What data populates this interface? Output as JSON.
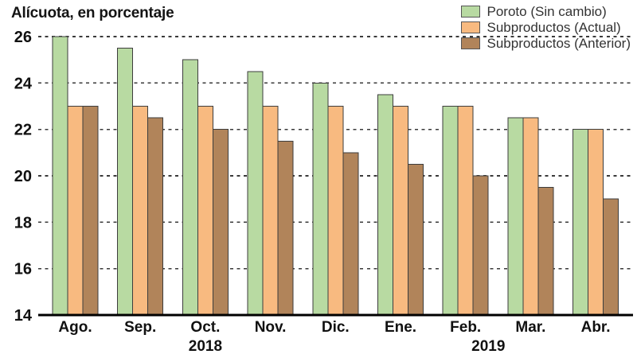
{
  "title": "Alícuota, en porcentaje",
  "chart_data": {
    "type": "bar",
    "title": "Alícuota, en porcentaje",
    "categories": [
      "Ago.",
      "Sep.",
      "Oct.",
      "Nov.",
      "Dic.",
      "Ene.",
      "Feb.",
      "Mar.",
      "Abr."
    ],
    "series": [
      {
        "name": "Poroto (Sin cambio)",
        "color": "#b8daa2",
        "values": [
          26,
          25.5,
          25,
          24.5,
          24,
          23.5,
          23,
          22.5,
          22
        ]
      },
      {
        "name": "Subproductos (Actual)",
        "color": "#f8ba80",
        "values": [
          23,
          23,
          23,
          23,
          23,
          23,
          23,
          22.5,
          22
        ]
      },
      {
        "name": "Subproductos (Anterior)",
        "color": "#b1845a",
        "values": [
          23,
          22.5,
          22,
          21.5,
          21,
          20.5,
          20,
          19.5,
          19
        ]
      }
    ],
    "yticks": [
      14,
      16,
      18,
      20,
      22,
      24,
      26
    ],
    "ylim": [
      14,
      26
    ],
    "xlabel": "",
    "ylabel": "Alícuota, en porcentaje",
    "grid": "horizontal-dashed",
    "legend_position": "top-right",
    "years": [
      {
        "label": "2018",
        "under_category_index": 2
      },
      {
        "label": "2019",
        "under_category_index": 6.35
      }
    ],
    "colors": {
      "axis": "#000000",
      "gridline": "#3a3a3a",
      "bar_border": "#3d3d3d",
      "tick_label": "#111111"
    }
  }
}
